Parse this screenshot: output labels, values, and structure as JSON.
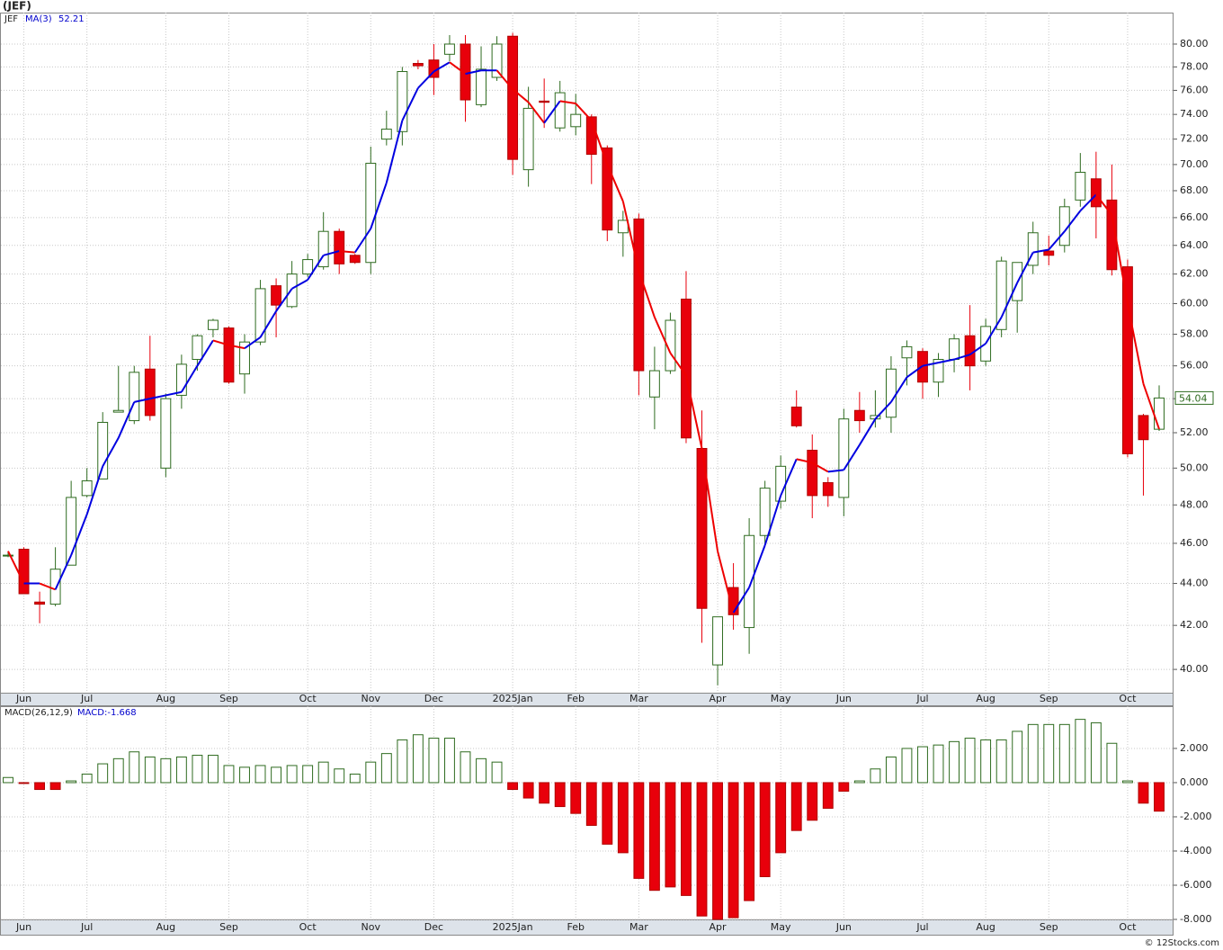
{
  "chart_data": [
    {
      "type": "candlestick",
      "title": "(JEF)",
      "symbol": "JEF",
      "log_scale": true,
      "grid": true,
      "up_color": "#2e6b1f",
      "down_color": "#e8000b",
      "ylim": [
        38.98,
        82.84
      ],
      "yticks": [
        {
          "value": 40,
          "label": "40.00"
        },
        {
          "value": 42,
          "label": "42.00"
        },
        {
          "value": 44,
          "label": "44.00"
        },
        {
          "value": 46,
          "label": "46.00"
        },
        {
          "value": 48,
          "label": "48.00"
        },
        {
          "value": 50,
          "label": "50.00"
        },
        {
          "value": 52,
          "label": "52.00"
        },
        {
          "value": 54,
          "label": "54.00"
        },
        {
          "value": 56,
          "label": "56.00"
        },
        {
          "value": 58,
          "label": "58.00"
        },
        {
          "value": 60,
          "label": "60.00"
        },
        {
          "value": 62,
          "label": "62.00"
        },
        {
          "value": 64,
          "label": "64.00"
        },
        {
          "value": 66,
          "label": "66.00"
        },
        {
          "value": 68,
          "label": "68.00"
        },
        {
          "value": 70,
          "label": "70.00"
        },
        {
          "value": 72,
          "label": "72.00"
        },
        {
          "value": 74,
          "label": "74.00"
        },
        {
          "value": 76,
          "label": "76.00"
        },
        {
          "value": 78,
          "label": "78.00"
        },
        {
          "value": 80,
          "label": "80.00"
        }
      ],
      "xticks": [
        {
          "value": 1,
          "label": "Jun"
        },
        {
          "value": 5,
          "label": "Jul"
        },
        {
          "value": 10,
          "label": "Aug"
        },
        {
          "value": 14,
          "label": "Sep"
        },
        {
          "value": 19,
          "label": "Oct"
        },
        {
          "value": 23,
          "label": "Nov"
        },
        {
          "value": 27,
          "label": "Dec"
        },
        {
          "value": 32,
          "label": "2025Jan"
        },
        {
          "value": 36,
          "label": "Feb"
        },
        {
          "value": 40,
          "label": "Mar"
        },
        {
          "value": 45,
          "label": "Apr"
        },
        {
          "value": 49,
          "label": "May"
        },
        {
          "value": 53,
          "label": "Jun"
        },
        {
          "value": 58,
          "label": "Jul"
        },
        {
          "value": 62,
          "label": "Aug"
        },
        {
          "value": 66,
          "label": "Sep"
        },
        {
          "value": 71,
          "label": "Oct"
        }
      ],
      "open": [
        45.4,
        45.7,
        43.1,
        43.0,
        44.9,
        48.5,
        49.4,
        53.2,
        52.7,
        55.8,
        50.0,
        54.2,
        56.4,
        58.3,
        58.4,
        55.5,
        57.5,
        61.2,
        59.8,
        62.0,
        62.5,
        65.0,
        63.3,
        62.8,
        72.0,
        72.6,
        78.3,
        78.6,
        79.1,
        80.0,
        74.8,
        77.1,
        80.7,
        69.6,
        75.1,
        72.9,
        73.0,
        73.8,
        71.3,
        64.9,
        65.9,
        54.1,
        55.7,
        60.3,
        51.1,
        40.2,
        43.8,
        41.9,
        46.4,
        48.2,
        53.5,
        51.0,
        49.2,
        48.4,
        53.3,
        52.8,
        52.9,
        56.5,
        56.9,
        55.0,
        56.4,
        57.9,
        56.3,
        58.3,
        60.2,
        62.6,
        63.6,
        64.0,
        67.3,
        68.9,
        67.3,
        62.5,
        53.0,
        52.2
      ],
      "high": [
        45.6,
        45.8,
        43.6,
        45.8,
        49.3,
        50.0,
        53.2,
        56.0,
        56.0,
        57.9,
        54.3,
        56.7,
        58.0,
        59.0,
        58.5,
        58.0,
        61.6,
        61.7,
        62.9,
        63.4,
        66.4,
        65.2,
        63.4,
        71.4,
        74.3,
        78.0,
        78.6,
        80.0,
        80.8,
        80.8,
        79.8,
        80.7,
        81.0,
        76.3,
        77.0,
        76.8,
        75.7,
        74.0,
        71.5,
        66.5,
        66.3,
        57.2,
        59.4,
        62.2,
        53.3,
        42.4,
        45.0,
        47.3,
        49.3,
        50.7,
        54.5,
        51.9,
        49.5,
        53.4,
        54.4,
        54.5,
        56.6,
        57.6,
        57.1,
        56.8,
        58.0,
        59.9,
        59.0,
        63.2,
        62.8,
        65.7,
        64.7,
        67.4,
        70.9,
        71.0,
        70.0,
        63.0,
        53.1,
        54.8
      ],
      "low": [
        45.3,
        43.5,
        42.1,
        42.9,
        44.9,
        48.4,
        49.4,
        53.2,
        52.5,
        52.7,
        49.5,
        53.4,
        55.7,
        57.8,
        54.9,
        54.3,
        57.3,
        57.8,
        59.7,
        61.8,
        62.3,
        62.0,
        62.7,
        62.0,
        71.5,
        71.5,
        77.8,
        75.6,
        78.5,
        73.4,
        74.6,
        76.8,
        69.2,
        68.3,
        72.9,
        72.6,
        72.3,
        68.5,
        64.3,
        63.2,
        54.2,
        52.2,
        55.5,
        51.4,
        41.2,
        39.3,
        41.8,
        40.7,
        45.9,
        47.8,
        52.3,
        47.3,
        47.9,
        47.4,
        52.0,
        52.3,
        52.0,
        54.8,
        54.0,
        54.1,
        55.6,
        54.5,
        56.0,
        57.8,
        58.1,
        62.0,
        62.6,
        63.5,
        66.8,
        64.5,
        61.9,
        50.6,
        48.5,
        52.1
      ],
      "close": [
        45.4,
        43.5,
        43.0,
        44.7,
        48.4,
        49.3,
        52.6,
        53.3,
        55.6,
        53.0,
        54.0,
        56.1,
        57.9,
        58.9,
        55.0,
        57.5,
        61.0,
        59.9,
        62.0,
        63.0,
        65.0,
        62.7,
        62.8,
        70.1,
        72.8,
        77.6,
        78.1,
        77.1,
        80.0,
        75.2,
        77.8,
        80.0,
        70.4,
        74.5,
        75.0,
        75.8,
        74.0,
        70.8,
        65.1,
        65.8,
        55.7,
        55.7,
        58.9,
        51.7,
        42.8,
        42.4,
        42.5,
        46.4,
        48.9,
        50.1,
        52.4,
        48.5,
        48.5,
        52.8,
        52.7,
        53.0,
        55.8,
        57.2,
        55.0,
        56.4,
        57.7,
        56.0,
        58.5,
        62.9,
        62.8,
        64.9,
        63.3,
        66.8,
        69.4,
        66.8,
        62.3,
        50.8,
        51.6,
        54.04
      ],
      "ma": {
        "name": "MA(3)",
        "value_label": "52.21",
        "up_color": "#0000e0",
        "down_color": "#ee0000",
        "values": [
          45.6,
          44.0,
          44.0,
          43.7,
          45.4,
          47.5,
          50.1,
          51.7,
          53.8,
          54.0,
          54.2,
          54.4,
          56.0,
          57.6,
          57.3,
          57.1,
          57.8,
          59.5,
          61.0,
          61.6,
          63.3,
          63.6,
          63.5,
          65.2,
          68.6,
          73.5,
          76.2,
          77.6,
          78.4,
          77.4,
          77.7,
          77.7,
          76.1,
          75.0,
          73.3,
          75.1,
          74.9,
          73.5,
          70.0,
          67.2,
          62.2,
          59.1,
          56.8,
          55.4,
          51.1,
          45.6,
          42.6,
          43.8,
          45.9,
          48.5,
          50.5,
          50.3,
          49.8,
          49.9,
          51.3,
          52.8,
          53.8,
          55.3,
          56.0,
          56.2,
          56.4,
          56.7,
          57.4,
          59.1,
          61.4,
          63.5,
          63.7,
          65.0,
          66.5,
          67.7,
          66.2,
          60.0,
          54.9,
          52.21
        ]
      },
      "source": "© 12Stocks.com"
    },
    {
      "type": "bar",
      "title": "MACD(26,12,9)",
      "value_label": "MACD:-1.668",
      "grid": true,
      "up_color": "#2e6b1f",
      "down_color": "#e8000b",
      "ylim": [
        -8.0,
        4.47
      ],
      "yticks": [
        {
          "value": 2,
          "label": "2.000"
        },
        {
          "value": 0,
          "label": "0.000"
        },
        {
          "value": -2,
          "label": "-2.000"
        },
        {
          "value": -4,
          "label": "-4.000"
        },
        {
          "value": -6,
          "label": "-6.000"
        },
        {
          "value": -8,
          "label": "-8.000"
        }
      ],
      "values": [
        0.3,
        -0.05,
        -0.4,
        -0.4,
        0.1,
        0.5,
        1.1,
        1.4,
        1.8,
        1.5,
        1.4,
        1.5,
        1.6,
        1.6,
        1.0,
        0.9,
        1.0,
        0.9,
        1.0,
        1.0,
        1.2,
        0.8,
        0.5,
        1.2,
        1.7,
        2.5,
        2.8,
        2.6,
        2.6,
        1.8,
        1.4,
        1.2,
        -0.4,
        -0.9,
        -1.2,
        -1.4,
        -1.8,
        -2.5,
        -3.6,
        -4.1,
        -5.6,
        -6.3,
        -6.1,
        -6.6,
        -7.8,
        -8.0,
        -7.9,
        -6.9,
        -5.5,
        -4.1,
        -2.8,
        -2.2,
        -1.5,
        -0.5,
        0.1,
        0.8,
        1.5,
        2.0,
        2.1,
        2.2,
        2.4,
        2.6,
        2.5,
        2.5,
        3.0,
        3.4,
        3.4,
        3.4,
        3.7,
        3.5,
        2.3,
        0.1,
        -1.2,
        -1.668
      ]
    }
  ]
}
